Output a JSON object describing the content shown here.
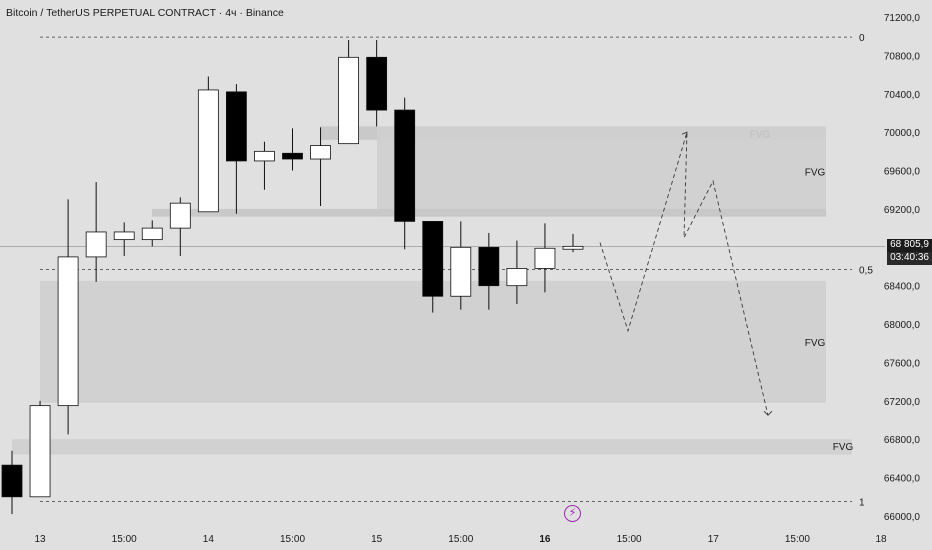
{
  "header": {
    "title": "Bitcoin / TetherUS PERPETUAL CONTRACT · 4ч · Binance"
  },
  "price_scale": {
    "current_price": "68 805,9",
    "countdown": "03:40:36"
  },
  "colors": {
    "background": "#e0e0e0",
    "bull_body": "#ffffff",
    "bear_body": "#000000",
    "fvg_zone": "#cfcfcf",
    "fvg_zone_dark": "#c6c6c6",
    "text": "#1a1a1a",
    "alert_accent": "#9c27b0"
  },
  "icons": {
    "alert": "lightning-icon"
  },
  "chart_data": {
    "type": "candlestick",
    "title": "Bitcoin / TetherUS PERPETUAL CONTRACT · 4ч · Binance",
    "interval": "4h",
    "ylim": [
      65850,
      71350
    ],
    "y_ticks": [
      {
        "value": 71200,
        "label": "71200,0"
      },
      {
        "value": 70800,
        "label": "70800,0"
      },
      {
        "value": 70400,
        "label": "70400,0"
      },
      {
        "value": 70000,
        "label": "70000,0"
      },
      {
        "value": 69600,
        "label": "69600,0"
      },
      {
        "value": 69200,
        "label": "69200,0"
      },
      {
        "value": 68400,
        "label": "68400,0"
      },
      {
        "value": 68000,
        "label": "68000,0"
      },
      {
        "value": 67600,
        "label": "67600,0"
      },
      {
        "value": 67200,
        "label": "67200,0"
      },
      {
        "value": 66800,
        "label": "66800,0"
      },
      {
        "value": 66400,
        "label": "66400,0"
      },
      {
        "value": 66000,
        "label": "66000,0"
      }
    ],
    "x_ticks": [
      {
        "bar": 1,
        "label": "13",
        "bold": false
      },
      {
        "bar": 4,
        "label": "15:00",
        "bold": false
      },
      {
        "bar": 7,
        "label": "14",
        "bold": false
      },
      {
        "bar": 10,
        "label": "15:00",
        "bold": false
      },
      {
        "bar": 13,
        "label": "15",
        "bold": false
      },
      {
        "bar": 16,
        "label": "15:00",
        "bold": false
      },
      {
        "bar": 19,
        "label": "16",
        "bold": true
      },
      {
        "bar": 22,
        "label": "15:00",
        "bold": false
      },
      {
        "bar": 25,
        "label": "17",
        "bold": false
      },
      {
        "bar": 28,
        "label": "15:00",
        "bold": false
      },
      {
        "bar": 31,
        "label": "18",
        "bold": false
      }
    ],
    "candles": [
      {
        "o": 66530,
        "h": 66680,
        "l": 66020,
        "c": 66200
      },
      {
        "o": 66200,
        "h": 67200,
        "l": 66200,
        "c": 67150
      },
      {
        "o": 67150,
        "h": 69300,
        "l": 66850,
        "c": 68700
      },
      {
        "o": 68700,
        "h": 69480,
        "l": 68440,
        "c": 68960
      },
      {
        "o": 68880,
        "h": 69060,
        "l": 68710,
        "c": 68960
      },
      {
        "o": 68880,
        "h": 69080,
        "l": 68810,
        "c": 69000
      },
      {
        "o": 69000,
        "h": 69320,
        "l": 68710,
        "c": 69260
      },
      {
        "o": 69170,
        "h": 70580,
        "l": 69170,
        "c": 70440
      },
      {
        "o": 70420,
        "h": 70500,
        "l": 69150,
        "c": 69700
      },
      {
        "o": 69700,
        "h": 69900,
        "l": 69400,
        "c": 69800
      },
      {
        "o": 69780,
        "h": 70040,
        "l": 69600,
        "c": 69720
      },
      {
        "o": 69720,
        "h": 70050,
        "l": 69230,
        "c": 69860
      },
      {
        "o": 69880,
        "h": 70960,
        "l": 69880,
        "c": 70780
      },
      {
        "o": 70780,
        "h": 70960,
        "l": 70060,
        "c": 70230
      },
      {
        "o": 70230,
        "h": 70360,
        "l": 68780,
        "c": 69070
      },
      {
        "o": 69070,
        "h": 69070,
        "l": 68120,
        "c": 68290
      },
      {
        "o": 68290,
        "h": 69070,
        "l": 68150,
        "c": 68800
      },
      {
        "o": 68800,
        "h": 68950,
        "l": 68150,
        "c": 68400
      },
      {
        "o": 68400,
        "h": 68870,
        "l": 68210,
        "c": 68580
      },
      {
        "o": 68580,
        "h": 69050,
        "l": 68330,
        "c": 68790
      },
      {
        "o": 68780,
        "h": 68940,
        "l": 68750,
        "c": 68810
      }
    ],
    "fvg_zones": [
      {
        "label": "FVG",
        "top": 70060,
        "bottom": 69920,
        "from_bar": 10,
        "to_bar": 29,
        "label_pos": "inline"
      },
      {
        "label": "FVG",
        "top": 70060,
        "bottom": 69120,
        "from_bar": 13,
        "to_bar": 29,
        "label_pos": "right"
      },
      {
        "label": "FVG",
        "top": 69200,
        "bottom": 69120,
        "from_bar": 5,
        "to_bar": 13,
        "label_pos": "none"
      },
      {
        "label": "FVG",
        "top": 68450,
        "bottom": 67180,
        "from_bar": 1,
        "to_bar": 29,
        "label_pos": "right"
      },
      {
        "label": "FVG",
        "top": 66800,
        "bottom": 66640,
        "from_bar": 0,
        "to_bar": 30,
        "label_pos": "right"
      }
    ],
    "fib_levels": [
      {
        "label": "0",
        "value": 70990
      },
      {
        "label": "0,5",
        "value": 68570
      },
      {
        "label": "1",
        "value": 66150
      }
    ],
    "projection": [
      {
        "bar": 21,
        "price": 68850
      },
      {
        "bar": 22,
        "price": 67930
      },
      {
        "bar": 24,
        "price": 70000
      },
      {
        "bar": 24,
        "price": 68900
      },
      {
        "bar": 25,
        "price": 69490
      },
      {
        "bar": 27,
        "price": 67050
      }
    ],
    "current_price_value": 68805.9
  }
}
